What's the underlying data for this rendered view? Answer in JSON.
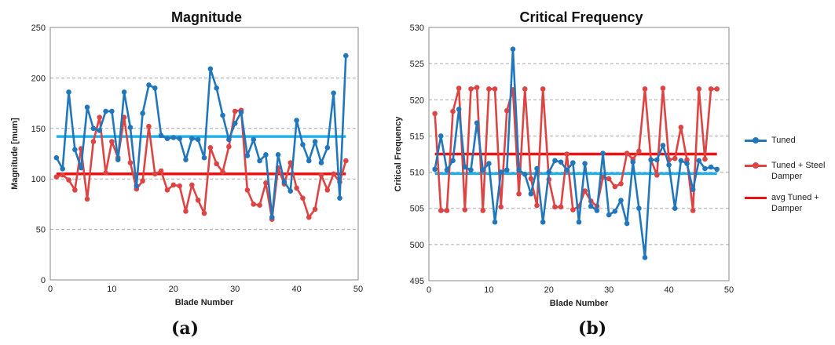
{
  "chart_data": [
    {
      "type": "line",
      "title": "Magnitude",
      "xlabel": "Blade Number",
      "ylabel": "Magnitude [mum]",
      "xlim": [
        0,
        50
      ],
      "ylim": [
        0,
        250
      ],
      "x_ticks": [
        0,
        10,
        20,
        30,
        40,
        50
      ],
      "y_ticks": [
        0,
        50,
        100,
        150,
        200,
        250
      ],
      "grid": "horizontal dashed",
      "x": [
        1,
        2,
        3,
        4,
        5,
        6,
        7,
        8,
        9,
        10,
        11,
        12,
        13,
        14,
        15,
        16,
        17,
        18,
        19,
        20,
        21,
        22,
        23,
        24,
        25,
        26,
        27,
        28,
        29,
        30,
        31,
        32,
        33,
        34,
        35,
        36,
        37,
        38,
        39,
        40,
        41,
        42,
        43,
        44,
        45,
        46,
        47,
        48
      ],
      "series": [
        {
          "name": "Tuned",
          "color": "#2277bb",
          "values": [
            121,
            110,
            186,
            129,
            111,
            171,
            150,
            148,
            167,
            167,
            119,
            186,
            151,
            93,
            165,
            193,
            190,
            143,
            140,
            141,
            140,
            119,
            140,
            139,
            121,
            209,
            190,
            163,
            139,
            155,
            166,
            123,
            139,
            118,
            124,
            62,
            124,
            97,
            88,
            158,
            134,
            118,
            137,
            116,
            131,
            185,
            81,
            222
          ]
        },
        {
          "name": "Tuned + Steel Damper",
          "color": "#dd4444",
          "values": [
            102,
            104,
            99,
            89,
            130,
            80,
            137,
            161,
            106,
            137,
            121,
            161,
            116,
            90,
            98,
            152,
            105,
            108,
            89,
            94,
            93,
            68,
            94,
            79,
            66,
            131,
            115,
            107,
            132,
            167,
            168,
            89,
            75,
            74,
            96,
            60,
            111,
            95,
            116,
            91,
            81,
            62,
            70,
            104,
            89,
            105,
            97,
            118
          ]
        }
      ],
      "reference_lines": [
        {
          "name": "avg Tuned + Damper",
          "color": "#ee1111",
          "value": 105
        },
        {
          "color": "#22b0e8",
          "value": 142
        }
      ]
    },
    {
      "type": "line",
      "title": "Critical Frequency",
      "xlabel": "Blade Number",
      "ylabel": "Critical Frequency",
      "xlim": [
        0,
        50
      ],
      "ylim": [
        495,
        530
      ],
      "x_ticks": [
        0,
        10,
        20,
        30,
        40,
        50
      ],
      "y_ticks": [
        495,
        500,
        505,
        510,
        515,
        520,
        525,
        530
      ],
      "grid": "horizontal dashed",
      "x": [
        1,
        2,
        3,
        4,
        5,
        6,
        7,
        8,
        9,
        10,
        11,
        12,
        13,
        14,
        15,
        16,
        17,
        18,
        19,
        20,
        21,
        22,
        23,
        24,
        25,
        26,
        27,
        28,
        29,
        30,
        31,
        32,
        33,
        34,
        35,
        36,
        37,
        38,
        39,
        40,
        41,
        42,
        43,
        44,
        45,
        46,
        47,
        48
      ],
      "series": [
        {
          "name": "Tuned",
          "color": "#2277bb",
          "values": [
            510.4,
            515.0,
            510.3,
            511.6,
            518.7,
            510.7,
            510.3,
            516.8,
            510.3,
            511.2,
            503.1,
            510.0,
            510.3,
            527.0,
            510.3,
            509.7,
            507.0,
            510.5,
            503.1,
            510.0,
            511.6,
            511.4,
            510.3,
            511.3,
            503.1,
            511.2,
            505.3,
            504.7,
            512.6,
            504.1,
            504.6,
            506.1,
            502.9,
            511.4,
            505.0,
            498.2,
            511.7,
            511.7,
            513.7,
            511.0,
            505.0,
            511.6,
            511.2,
            507.6,
            511.6,
            510.5,
            510.7,
            510.4
          ]
        },
        {
          "name": "Tuned + Steel Damper",
          "color": "#dd4444",
          "values": [
            518.1,
            504.7,
            504.7,
            518.4,
            521.6,
            504.8,
            521.5,
            521.7,
            504.7,
            521.5,
            521.5,
            505.2,
            518.5,
            521.4,
            507.0,
            521.5,
            509.1,
            505.4,
            521.5,
            509.0,
            505.2,
            505.2,
            512.5,
            504.8,
            505.3,
            507.4,
            506.0,
            505.3,
            509.3,
            509.1,
            508.0,
            508.4,
            512.6,
            511.8,
            512.9,
            521.5,
            511.7,
            509.6,
            521.6,
            511.7,
            511.9,
            516.2,
            511.7,
            504.7,
            521.5,
            511.8,
            521.5,
            521.5
          ]
        }
      ],
      "reference_lines": [
        {
          "name": "avg Tuned + Damper",
          "color": "#ee1111",
          "value": 512.5
        },
        {
          "color": "#22b0e8",
          "value": 509.8
        }
      ]
    }
  ],
  "legend": {
    "tuned": "Tuned",
    "damper": "Tuned + Steel Damper",
    "avg": "avg Tuned + Damper",
    "tuned_color": "#2277bb",
    "damper_color": "#dd4444",
    "avg_color": "#ee1111"
  },
  "panel_labels": {
    "a": "(a)",
    "b": "(b)"
  }
}
